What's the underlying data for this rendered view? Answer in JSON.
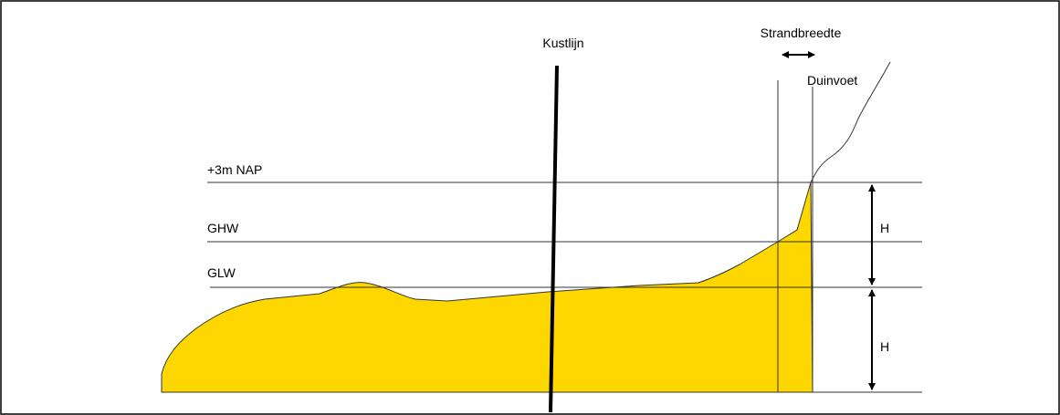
{
  "labels": {
    "coastline": "Kustlijn",
    "beach_width": "Strandbreedte",
    "dune_foot": "Duinvoet",
    "nap": "+3m NAP",
    "ghw": "GHW",
    "glw": "GLW",
    "height_upper": "H",
    "height_lower": "H"
  }
}
